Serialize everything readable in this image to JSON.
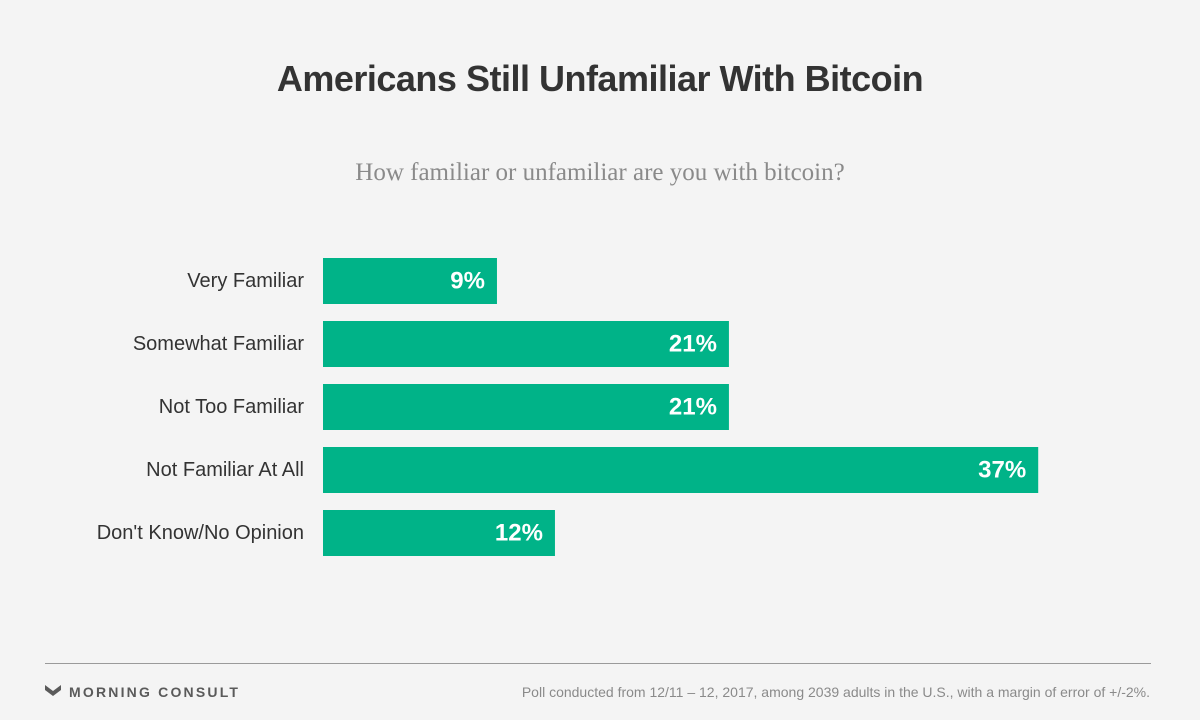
{
  "header": {
    "title": "Americans Still Unfamiliar With Bitcoin",
    "subtitle": "How familiar or unfamiliar are you with bitcoin?"
  },
  "chart_data": {
    "type": "bar",
    "orientation": "horizontal",
    "title": "Americans Still Unfamiliar With Bitcoin",
    "subtitle": "How familiar or unfamiliar are you with bitcoin?",
    "categories": [
      "Very Familiar",
      "Somewhat Familiar",
      "Not Too Familiar",
      "Not Familiar At All",
      "Don't Know/No Opinion"
    ],
    "values": [
      9,
      21,
      21,
      37,
      12
    ],
    "value_labels": [
      "9%",
      "21%",
      "21%",
      "37%",
      "12%"
    ],
    "unit": "%",
    "xlim": [
      0,
      40
    ],
    "grid": false,
    "legend": "none",
    "bar_color": "#00b388",
    "label_color": "#ffffff"
  },
  "footer": {
    "brand": "MORNING CONSULT",
    "note": "Poll conducted from 12/11 – 12, 2017, among 2039 adults in the U.S., with a margin of error of +/-2%.",
    "logo_icon": "morning-consult-chevron-icon"
  }
}
